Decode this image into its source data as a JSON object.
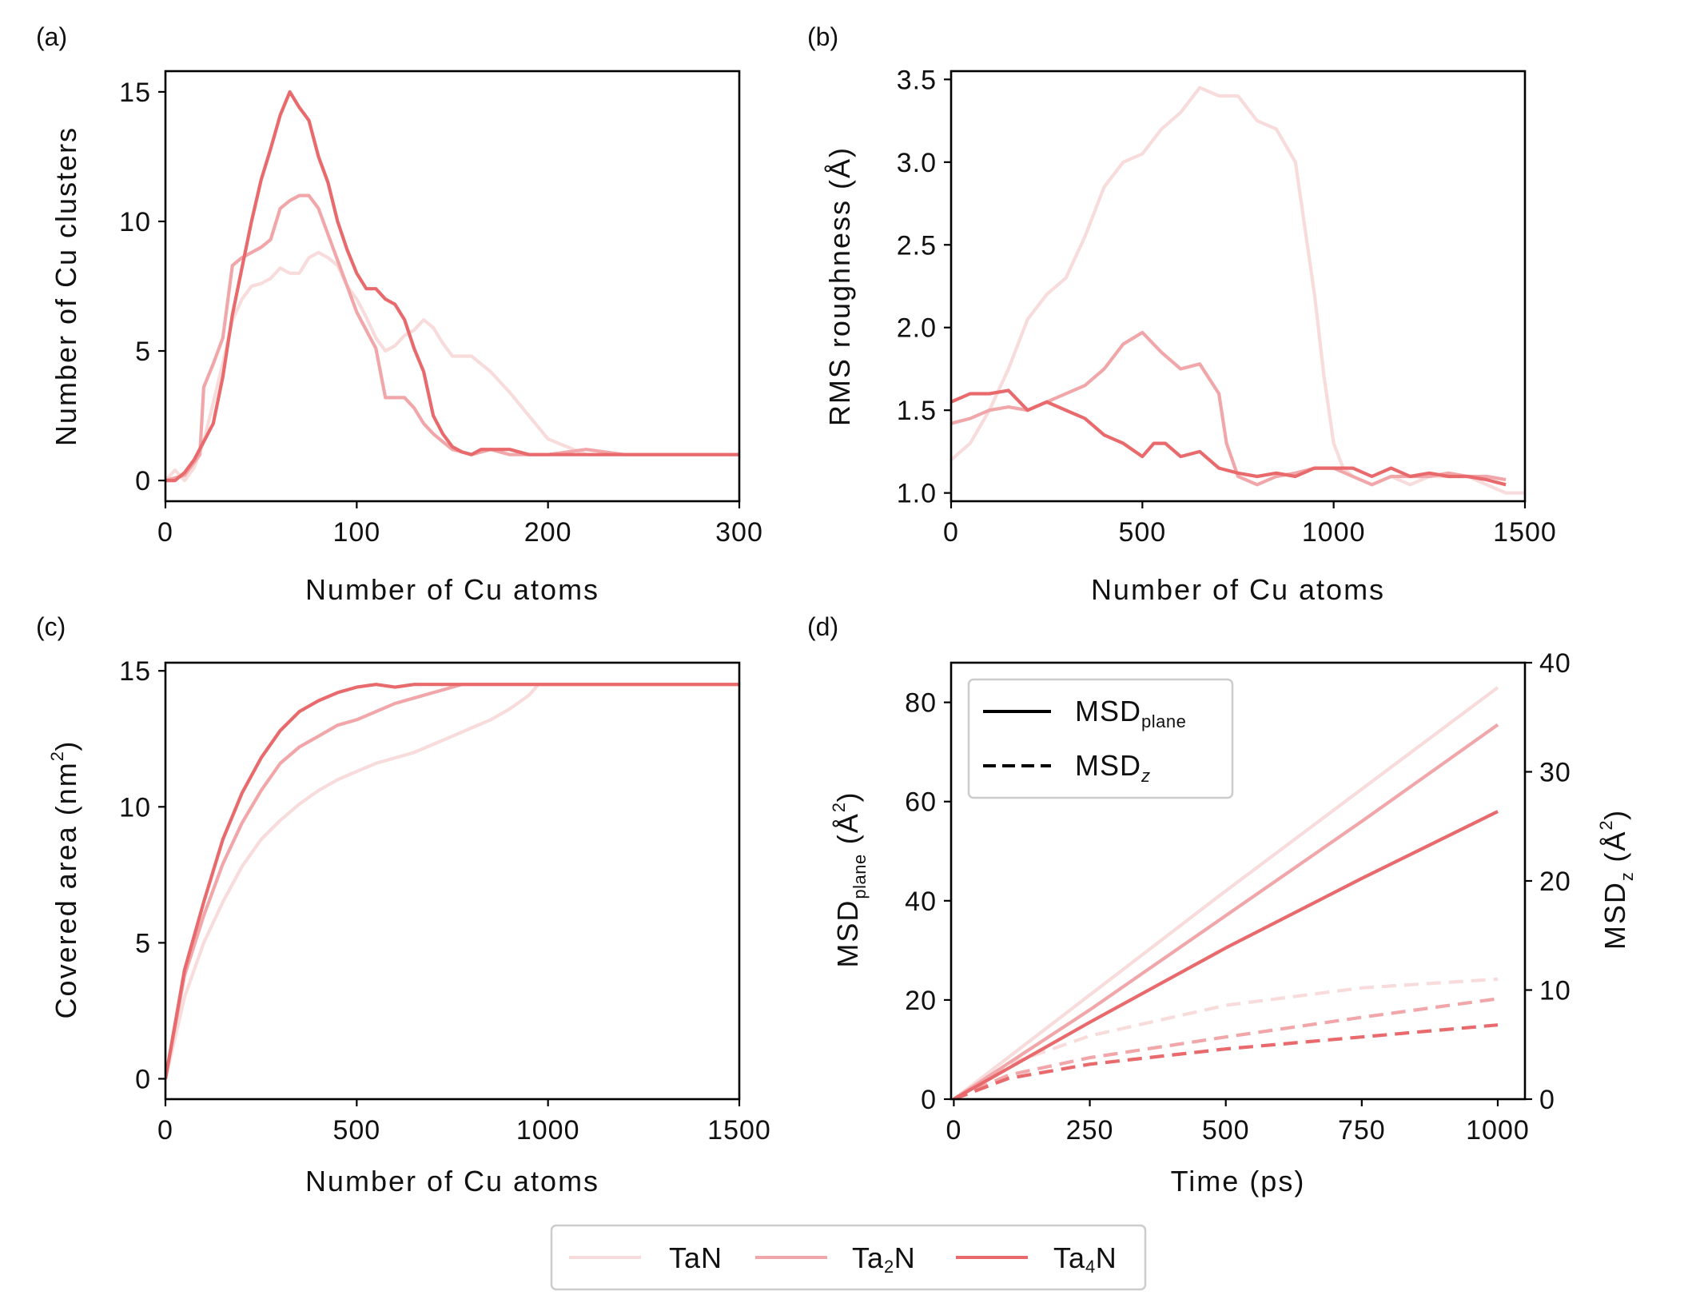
{
  "colors": {
    "TaN": "#f8dcdc",
    "Ta2N": "#f1a7aa",
    "Ta4N": "#e86a6d",
    "axis": "#000000"
  },
  "legend": {
    "items": [
      {
        "key": "TaN",
        "base": "TaN",
        "sub": ""
      },
      {
        "key": "Ta2N",
        "base": "Ta",
        "sub": "2",
        "tail": "N"
      },
      {
        "key": "Ta4N",
        "base": "Ta",
        "sub": "4",
        "tail": "N"
      }
    ]
  },
  "chart_data": [
    {
      "panel": "(a)",
      "type": "line",
      "xlabel": "Number of Cu atoms",
      "ylabel": "Number of Cu clusters",
      "xlim": [
        0,
        300
      ],
      "ylim": [
        -0.8,
        15.8
      ],
      "xticks": [
        "0",
        "100",
        "200",
        "300"
      ],
      "xtick_values": [
        0,
        100,
        200,
        300
      ],
      "yticks": [
        "0",
        "5",
        "10",
        "15"
      ],
      "ytick_values": [
        0,
        5,
        10,
        15
      ],
      "series": [
        {
          "name": "TaN",
          "x": [
            0,
            5,
            10,
            15,
            20,
            25,
            30,
            35,
            40,
            45,
            50,
            55,
            60,
            65,
            70,
            75,
            80,
            85,
            90,
            95,
            100,
            105,
            110,
            115,
            120,
            125,
            130,
            135,
            140,
            145,
            150,
            160,
            170,
            180,
            190,
            200,
            210,
            220,
            240,
            300
          ],
          "y": [
            0,
            0.4,
            0,
            0.5,
            1.5,
            3,
            4.5,
            6.2,
            7,
            7.5,
            7.6,
            7.8,
            8.2,
            8,
            8,
            8.6,
            8.8,
            8.6,
            8.3,
            7.5,
            7,
            6.3,
            5.5,
            5,
            5.2,
            5.6,
            5.8,
            6.2,
            5.9,
            5.3,
            4.8,
            4.8,
            4.2,
            3.4,
            2.5,
            1.6,
            1.3,
            1,
            1,
            1
          ]
        },
        {
          "name": "Ta2N",
          "x": [
            0,
            10,
            18,
            20,
            25,
            30,
            35,
            40,
            45,
            50,
            55,
            60,
            65,
            70,
            75,
            80,
            85,
            90,
            95,
            100,
            105,
            110,
            115,
            120,
            125,
            130,
            135,
            140,
            145,
            150,
            155,
            160,
            170,
            180,
            190,
            200,
            220,
            240,
            300
          ],
          "y": [
            0,
            0.2,
            1,
            3.6,
            4.5,
            5.5,
            8.3,
            8.6,
            8.8,
            9,
            9.3,
            10.5,
            10.8,
            11,
            11,
            10.5,
            9.5,
            8.5,
            7.5,
            6.5,
            5.8,
            5.1,
            3.2,
            3.2,
            3.2,
            2.8,
            2.2,
            1.8,
            1.5,
            1.2,
            1.1,
            1,
            1.2,
            1,
            1,
            1,
            1.2,
            1,
            1
          ]
        },
        {
          "name": "Ta4N",
          "x": [
            0,
            5,
            10,
            15,
            20,
            25,
            30,
            35,
            40,
            45,
            50,
            55,
            60,
            65,
            70,
            75,
            80,
            85,
            90,
            95,
            100,
            105,
            110,
            115,
            120,
            125,
            130,
            135,
            140,
            145,
            150,
            155,
            160,
            165,
            170,
            180,
            190,
            200,
            300
          ],
          "y": [
            0,
            0,
            0.3,
            0.8,
            1.5,
            2.2,
            4,
            6.4,
            8.2,
            10,
            11.6,
            12.8,
            14.1,
            15,
            14.4,
            13.9,
            12.5,
            11.5,
            10,
            8.9,
            8,
            7.4,
            7.4,
            7,
            6.8,
            6.2,
            5.1,
            4.2,
            2.5,
            1.8,
            1.3,
            1.1,
            1,
            1.2,
            1.2,
            1.2,
            1,
            1,
            1
          ]
        }
      ]
    },
    {
      "panel": "(b)",
      "type": "line",
      "xlabel": "Number of Cu atoms",
      "ylabel": "RMS roughness (Å)",
      "xlim": [
        0,
        1500
      ],
      "ylim": [
        0.95,
        3.55
      ],
      "xticks": [
        "0",
        "500",
        "1000",
        "1500"
      ],
      "xtick_values": [
        0,
        500,
        1000,
        1500
      ],
      "yticks": [
        "1.0",
        "1.5",
        "2.0",
        "2.5",
        "3.0",
        "3.5"
      ],
      "ytick_values": [
        1.0,
        1.5,
        2.0,
        2.5,
        3.0,
        3.5
      ],
      "series": [
        {
          "name": "TaN",
          "x": [
            0,
            50,
            100,
            150,
            200,
            250,
            300,
            350,
            400,
            450,
            500,
            550,
            600,
            650,
            700,
            750,
            800,
            850,
            900,
            950,
            975,
            1000,
            1025,
            1050,
            1100,
            1150,
            1200,
            1250,
            1300,
            1350,
            1400,
            1450,
            1500
          ],
          "y": [
            1.2,
            1.3,
            1.5,
            1.75,
            2.05,
            2.2,
            2.3,
            2.55,
            2.85,
            3.0,
            3.05,
            3.2,
            3.3,
            3.45,
            3.4,
            3.4,
            3.25,
            3.2,
            3.0,
            2.2,
            1.7,
            1.3,
            1.15,
            1.1,
            1.05,
            1.1,
            1.05,
            1.1,
            1.1,
            1.1,
            1.05,
            1.0,
            1.0
          ]
        },
        {
          "name": "Ta2N",
          "x": [
            0,
            50,
            100,
            150,
            200,
            250,
            300,
            350,
            400,
            450,
            500,
            550,
            600,
            650,
            700,
            720,
            750,
            800,
            850,
            900,
            950,
            1000,
            1050,
            1100,
            1150,
            1200,
            1250,
            1300,
            1350,
            1400,
            1450
          ],
          "y": [
            1.42,
            1.45,
            1.5,
            1.52,
            1.5,
            1.55,
            1.6,
            1.65,
            1.75,
            1.9,
            1.97,
            1.85,
            1.75,
            1.78,
            1.6,
            1.3,
            1.1,
            1.05,
            1.1,
            1.12,
            1.15,
            1.15,
            1.1,
            1.05,
            1.1,
            1.1,
            1.1,
            1.12,
            1.1,
            1.1,
            1.08
          ]
        },
        {
          "name": "Ta4N",
          "x": [
            0,
            50,
            100,
            150,
            200,
            250,
            300,
            350,
            400,
            450,
            500,
            530,
            560,
            600,
            650,
            700,
            750,
            800,
            850,
            900,
            950,
            1000,
            1050,
            1100,
            1150,
            1200,
            1250,
            1300,
            1350,
            1400,
            1450
          ],
          "y": [
            1.55,
            1.6,
            1.6,
            1.62,
            1.5,
            1.55,
            1.5,
            1.45,
            1.35,
            1.3,
            1.22,
            1.3,
            1.3,
            1.22,
            1.25,
            1.15,
            1.12,
            1.1,
            1.12,
            1.1,
            1.15,
            1.15,
            1.15,
            1.1,
            1.15,
            1.1,
            1.12,
            1.1,
            1.1,
            1.08,
            1.05
          ]
        }
      ]
    },
    {
      "panel": "(c)",
      "type": "line",
      "xlabel": "Number of Cu atoms",
      "ylabel_base": "Covered area (nm",
      "ylabel_sup": "2",
      "ylabel_tail": ")",
      "xlim": [
        0,
        1500
      ],
      "ylim": [
        -0.75,
        15.3
      ],
      "xticks": [
        "0",
        "500",
        "1000",
        "1500"
      ],
      "xtick_values": [
        0,
        500,
        1000,
        1500
      ],
      "yticks": [
        "0",
        "5",
        "10",
        "15"
      ],
      "ytick_values": [
        0,
        5,
        10,
        15
      ],
      "series": [
        {
          "name": "TaN",
          "x": [
            0,
            50,
            100,
            150,
            200,
            250,
            300,
            350,
            400,
            450,
            500,
            550,
            600,
            650,
            700,
            750,
            800,
            850,
            900,
            950,
            975,
            1000,
            1500
          ],
          "y": [
            0,
            3,
            5,
            6.5,
            7.8,
            8.8,
            9.5,
            10.1,
            10.6,
            11.0,
            11.3,
            11.6,
            11.8,
            12.0,
            12.3,
            12.6,
            12.9,
            13.2,
            13.6,
            14.1,
            14.5,
            14.5,
            14.5
          ]
        },
        {
          "name": "Ta2N",
          "x": [
            0,
            50,
            100,
            150,
            200,
            250,
            300,
            350,
            400,
            450,
            500,
            550,
            600,
            650,
            700,
            750,
            775,
            800,
            1500
          ],
          "y": [
            0,
            3.8,
            6,
            7.9,
            9.4,
            10.6,
            11.6,
            12.2,
            12.6,
            13.0,
            13.2,
            13.5,
            13.8,
            14.0,
            14.2,
            14.4,
            14.5,
            14.5,
            14.5
          ]
        },
        {
          "name": "Ta4N",
          "x": [
            0,
            50,
            100,
            150,
            200,
            250,
            300,
            350,
            400,
            450,
            500,
            550,
            600,
            650,
            1500
          ],
          "y": [
            0,
            4,
            6.5,
            8.8,
            10.5,
            11.8,
            12.8,
            13.5,
            13.9,
            14.2,
            14.4,
            14.5,
            14.4,
            14.5,
            14.5
          ]
        }
      ]
    },
    {
      "panel": "(d)",
      "type": "line",
      "xlabel": "Time (ps)",
      "ylabel_left": {
        "base": "MSD",
        "sub": "plane",
        "tail": " (Å",
        "sup": "2",
        "end": ")"
      },
      "ylabel_right": {
        "base": "MSD",
        "sub": "z",
        "tail": " (Å",
        "sup": "2",
        "end": ")"
      },
      "xlim": [
        -5,
        1050
      ],
      "ylim_left": [
        0,
        88
      ],
      "ylim_right": [
        0,
        40
      ],
      "xticks": [
        "0",
        "250",
        "500",
        "750",
        "1000"
      ],
      "xtick_values": [
        0,
        250,
        500,
        750,
        1000
      ],
      "yticks_left": [
        "0",
        "20",
        "40",
        "60",
        "80"
      ],
      "ytick_left_values": [
        0,
        20,
        40,
        60,
        80
      ],
      "yticks_right": [
        "0",
        "10",
        "20",
        "30",
        "40"
      ],
      "ytick_right_values": [
        0,
        10,
        20,
        30,
        40
      ],
      "legend": [
        {
          "style": "solid",
          "base": "MSD",
          "sub": "plane"
        },
        {
          "style": "dashed",
          "base": "MSD",
          "sub": "z"
        }
      ],
      "series": [
        {
          "name": "TaN",
          "kind": "MSD_plane",
          "axis": "left",
          "x": [
            0,
            250,
            500,
            750,
            1000
          ],
          "y": [
            0,
            21,
            42,
            62.5,
            83
          ]
        },
        {
          "name": "Ta2N",
          "kind": "MSD_plane",
          "axis": "left",
          "x": [
            0,
            250,
            500,
            750,
            1000
          ],
          "y": [
            0,
            18,
            37,
            56,
            75.5
          ]
        },
        {
          "name": "Ta4N",
          "kind": "MSD_plane",
          "axis": "left",
          "x": [
            0,
            250,
            500,
            750,
            1000
          ],
          "y": [
            0,
            15.5,
            30.5,
            44.5,
            58
          ]
        },
        {
          "name": "TaN",
          "kind": "MSD_z",
          "axis": "right",
          "x": [
            0,
            100,
            250,
            500,
            750,
            1000
          ],
          "y": [
            0,
            3.2,
            5.8,
            8.6,
            10.2,
            11
          ]
        },
        {
          "name": "Ta2N",
          "kind": "MSD_z",
          "axis": "right",
          "x": [
            0,
            100,
            250,
            500,
            750,
            1000
          ],
          "y": [
            0,
            2.2,
            3.8,
            5.7,
            7.5,
            9.2
          ]
        },
        {
          "name": "Ta4N",
          "kind": "MSD_z",
          "axis": "right",
          "x": [
            0,
            100,
            250,
            500,
            750,
            1000
          ],
          "y": [
            0,
            1.9,
            3.2,
            4.6,
            5.7,
            6.8
          ]
        }
      ]
    }
  ]
}
